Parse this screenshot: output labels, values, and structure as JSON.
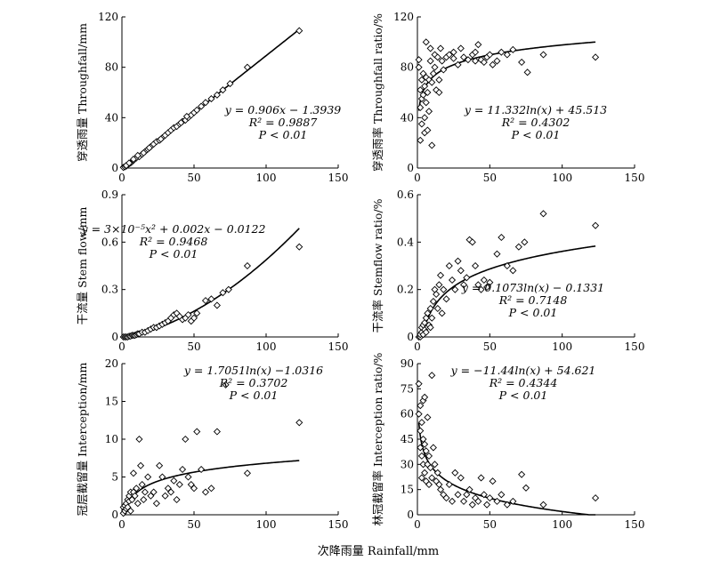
{
  "figure": {
    "xlabel": "次降雨量 Rainfall/mm"
  },
  "chart_data": [
    {
      "type": "scatter",
      "ylabel": "穿透雨量 Throughfall/mm",
      "xlim": [
        0,
        150
      ],
      "ylim": [
        0,
        120
      ],
      "xticks": [
        "0",
        "50",
        "100",
        "150"
      ],
      "yticks": [
        "0",
        "40",
        "80",
        "120"
      ],
      "fit": {
        "kind": "linear",
        "a": 0.906,
        "b": -1.3939
      },
      "annotations": [
        "y = 0.906x − 1.3939",
        "R² = 0.9887",
        "P < 0.01"
      ],
      "points": [
        [
          1,
          0.5
        ],
        [
          2,
          1
        ],
        [
          3,
          1.5
        ],
        [
          4,
          2.5
        ],
        [
          5,
          3.5
        ],
        [
          6,
          4
        ],
        [
          7,
          5
        ],
        [
          8,
          6
        ],
        [
          10,
          8
        ],
        [
          12,
          9
        ],
        [
          14,
          11
        ],
        [
          16,
          13
        ],
        [
          18,
          15
        ],
        [
          20,
          17
        ],
        [
          22,
          19
        ],
        [
          24,
          21
        ],
        [
          26,
          22
        ],
        [
          28,
          24
        ],
        [
          30,
          26
        ],
        [
          32,
          28
        ],
        [
          34,
          30
        ],
        [
          36,
          32
        ],
        [
          38,
          33
        ],
        [
          40,
          35
        ],
        [
          42,
          37
        ],
        [
          44,
          38
        ],
        [
          46,
          40
        ],
        [
          48,
          42
        ],
        [
          50,
          44
        ],
        [
          52,
          46
        ],
        [
          58,
          52
        ],
        [
          62,
          55
        ],
        [
          66,
          58
        ],
        [
          70,
          62
        ],
        [
          75,
          67
        ],
        [
          87,
          80
        ],
        [
          123,
          109
        ],
        [
          3,
          2
        ],
        [
          5,
          4
        ],
        [
          8,
          7
        ],
        [
          11,
          10
        ],
        [
          15,
          12
        ],
        [
          19,
          16
        ],
        [
          27,
          23
        ],
        [
          41,
          36
        ],
        [
          45,
          41
        ],
        [
          55,
          49
        ]
      ]
    },
    {
      "type": "scatter",
      "ylabel": "穿透雨率 Throughfall ratio/%",
      "xlim": [
        0,
        150
      ],
      "ylim": [
        0,
        120
      ],
      "xticks": [
        "0",
        "50",
        "100",
        "150"
      ],
      "yticks": [
        "0",
        "40",
        "80",
        "120"
      ],
      "fit": {
        "kind": "log",
        "a": 11.332,
        "b": 45.513
      },
      "annotations": [
        "y = 11.332ln(x) + 45.513",
        "R² = 0.4302",
        "P < 0.01"
      ],
      "points": [
        [
          1,
          80
        ],
        [
          1,
          86
        ],
        [
          2,
          22
        ],
        [
          2,
          48
        ],
        [
          2,
          62
        ],
        [
          3,
          35
        ],
        [
          3,
          55
        ],
        [
          3,
          70
        ],
        [
          4,
          58
        ],
        [
          4,
          75
        ],
        [
          5,
          28
        ],
        [
          5,
          40
        ],
        [
          5,
          65
        ],
        [
          6,
          52
        ],
        [
          6,
          72
        ],
        [
          6,
          100
        ],
        [
          7,
          30
        ],
        [
          7,
          60
        ],
        [
          8,
          45
        ],
        [
          8,
          70
        ],
        [
          9,
          85
        ],
        [
          10,
          18
        ],
        [
          10,
          68
        ],
        [
          11,
          75
        ],
        [
          12,
          90
        ],
        [
          12,
          80
        ],
        [
          13,
          62
        ],
        [
          14,
          88
        ],
        [
          15,
          70
        ],
        [
          16,
          95
        ],
        [
          17,
          85
        ],
        [
          18,
          78
        ],
        [
          20,
          88
        ],
        [
          22,
          90
        ],
        [
          25,
          87
        ],
        [
          28,
          82
        ],
        [
          30,
          95
        ],
        [
          32,
          88
        ],
        [
          35,
          86
        ],
        [
          38,
          90
        ],
        [
          40,
          92
        ],
        [
          42,
          98
        ],
        [
          44,
          86
        ],
        [
          46,
          84
        ],
        [
          48,
          88
        ],
        [
          50,
          90
        ],
        [
          52,
          82
        ],
        [
          55,
          85
        ],
        [
          58,
          92
        ],
        [
          62,
          90
        ],
        [
          66,
          94
        ],
        [
          72,
          84
        ],
        [
          76,
          76
        ],
        [
          87,
          90
        ],
        [
          123,
          88
        ],
        [
          9,
          95
        ],
        [
          15,
          60
        ],
        [
          25,
          92
        ],
        [
          40,
          85
        ]
      ]
    },
    {
      "type": "scatter",
      "ylabel": "干流量 Stem flow/mm",
      "xlim": [
        0,
        150
      ],
      "ylim": [
        0,
        0.9
      ],
      "xticks": [
        "0",
        "50",
        "100",
        "150"
      ],
      "yticks": [
        "0",
        "0.3",
        "0.6",
        "0.9"
      ],
      "fit": {
        "kind": "quadratic",
        "a": 3e-05,
        "b": 0.002,
        "c": -0.0122
      },
      "annotations": [
        "y = 3×10⁻⁵x² + 0.002x − 0.0122",
        "R² = 0.9468",
        "P < 0.01"
      ],
      "points": [
        [
          1,
          0
        ],
        [
          2,
          0
        ],
        [
          3,
          0
        ],
        [
          4,
          0
        ],
        [
          5,
          0.005
        ],
        [
          6,
          0.005
        ],
        [
          7,
          0.01
        ],
        [
          8,
          0.01
        ],
        [
          9,
          0.01
        ],
        [
          10,
          0.015
        ],
        [
          11,
          0.02
        ],
        [
          12,
          0.02
        ],
        [
          14,
          0.03
        ],
        [
          16,
          0.03
        ],
        [
          18,
          0.04
        ],
        [
          20,
          0.05
        ],
        [
          22,
          0.06
        ],
        [
          24,
          0.06
        ],
        [
          26,
          0.07
        ],
        [
          28,
          0.08
        ],
        [
          30,
          0.09
        ],
        [
          32,
          0.1
        ],
        [
          34,
          0.12
        ],
        [
          36,
          0.14
        ],
        [
          38,
          0.15
        ],
        [
          40,
          0.13
        ],
        [
          42,
          0.11
        ],
        [
          44,
          0.12
        ],
        [
          46,
          0.14
        ],
        [
          48,
          0.1
        ],
        [
          50,
          0.12
        ],
        [
          52,
          0.15
        ],
        [
          58,
          0.23
        ],
        [
          62,
          0.24
        ],
        [
          66,
          0.2
        ],
        [
          70,
          0.28
        ],
        [
          74,
          0.3
        ],
        [
          87,
          0.45
        ],
        [
          123,
          0.57
        ]
      ]
    },
    {
      "type": "scatter",
      "ylabel": "干流率 Stemflow ratio/%",
      "xlim": [
        0,
        150
      ],
      "ylim": [
        0,
        0.6
      ],
      "xticks": [
        "0",
        "50",
        "100",
        "150"
      ],
      "yticks": [
        "0",
        "0.2",
        "0.4",
        "0.6"
      ],
      "fit": {
        "kind": "log",
        "a": 0.1073,
        "b": -0.1331
      },
      "annotations": [
        "y = 0.1073ln(x) − 0.1331",
        "R² = 0.7148",
        "P < 0.01"
      ],
      "points": [
        [
          1,
          0
        ],
        [
          2,
          0
        ],
        [
          2,
          0.01
        ],
        [
          3,
          0.02
        ],
        [
          3,
          0.04
        ],
        [
          4,
          0.01
        ],
        [
          4,
          0.05
        ],
        [
          5,
          0.06
        ],
        [
          5,
          0.03
        ],
        [
          6,
          0.08
        ],
        [
          7,
          0.1
        ],
        [
          8,
          0.05
        ],
        [
          9,
          0.12
        ],
        [
          10,
          0.08
        ],
        [
          11,
          0.15
        ],
        [
          12,
          0.2
        ],
        [
          13,
          0.18
        ],
        [
          14,
          0.12
        ],
        [
          15,
          0.22
        ],
        [
          16,
          0.26
        ],
        [
          18,
          0.2
        ],
        [
          20,
          0.16
        ],
        [
          22,
          0.3
        ],
        [
          24,
          0.24
        ],
        [
          26,
          0.2
        ],
        [
          28,
          0.32
        ],
        [
          30,
          0.28
        ],
        [
          32,
          0.22
        ],
        [
          34,
          0.25
        ],
        [
          36,
          0.41
        ],
        [
          38,
          0.4
        ],
        [
          40,
          0.3
        ],
        [
          42,
          0.22
        ],
        [
          44,
          0.2
        ],
        [
          46,
          0.24
        ],
        [
          48,
          0.21
        ],
        [
          50,
          0.23
        ],
        [
          55,
          0.35
        ],
        [
          58,
          0.42
        ],
        [
          62,
          0.3
        ],
        [
          66,
          0.28
        ],
        [
          70,
          0.38
        ],
        [
          74,
          0.4
        ],
        [
          87,
          0.52
        ],
        [
          123,
          0.47
        ],
        [
          6,
          0.02
        ],
        [
          9,
          0.04
        ],
        [
          17,
          0.1
        ]
      ]
    },
    {
      "type": "scatter",
      "ylabel": "冠层截留量 Interception/mm",
      "xlim": [
        0,
        150
      ],
      "ylim": [
        0,
        20
      ],
      "xticks": [
        "0",
        "50",
        "100",
        "150"
      ],
      "yticks": [
        "0",
        "5",
        "10",
        "15",
        "20"
      ],
      "fit": {
        "kind": "log",
        "a": 1.7051,
        "b": -1.0316
      },
      "annotations": [
        "y = 1.7051ln(x) −1.0316",
        "R² = 0.3702",
        "P < 0.01"
      ],
      "points": [
        [
          1,
          0.2
        ],
        [
          1,
          1
        ],
        [
          2,
          0.5
        ],
        [
          2,
          1.2
        ],
        [
          3,
          1.5
        ],
        [
          3,
          0.8
        ],
        [
          4,
          2
        ],
        [
          4,
          1
        ],
        [
          5,
          1.8
        ],
        [
          5,
          2.5
        ],
        [
          6,
          0.5
        ],
        [
          6,
          3
        ],
        [
          7,
          2
        ],
        [
          8,
          5.5
        ],
        [
          8,
          3
        ],
        [
          9,
          2.5
        ],
        [
          10,
          3.5
        ],
        [
          11,
          1.5
        ],
        [
          12,
          10
        ],
        [
          13,
          6.5
        ],
        [
          14,
          4
        ],
        [
          15,
          2
        ],
        [
          16,
          3
        ],
        [
          18,
          5
        ],
        [
          20,
          2.5
        ],
        [
          22,
          3
        ],
        [
          24,
          1.5
        ],
        [
          26,
          6.5
        ],
        [
          28,
          5
        ],
        [
          30,
          2.5
        ],
        [
          32,
          3.5
        ],
        [
          34,
          3
        ],
        [
          36,
          4.5
        ],
        [
          38,
          2
        ],
        [
          40,
          4
        ],
        [
          42,
          6
        ],
        [
          44,
          10
        ],
        [
          46,
          5
        ],
        [
          48,
          4
        ],
        [
          50,
          3.5
        ],
        [
          52,
          11
        ],
        [
          55,
          6
        ],
        [
          58,
          3
        ],
        [
          62,
          3.5
        ],
        [
          66,
          11
        ],
        [
          72,
          17.2
        ],
        [
          87,
          5.5
        ],
        [
          123,
          12.2
        ]
      ]
    },
    {
      "type": "scatter",
      "ylabel": "林冠截留率 Interception ratio/%",
      "xlim": [
        0,
        150
      ],
      "ylim": [
        0,
        90
      ],
      "xticks": [
        "0",
        "50",
        "100",
        "150"
      ],
      "yticks": [
        "0",
        "15",
        "30",
        "45",
        "60",
        "75",
        "90"
      ],
      "fit": {
        "kind": "log",
        "a": -11.44,
        "b": 54.621
      },
      "annotations": [
        "y = −11.44ln(x) + 54.621",
        "R² = 0.4344",
        "P < 0.01"
      ],
      "points": [
        [
          1,
          78
        ],
        [
          1,
          60
        ],
        [
          2,
          65
        ],
        [
          2,
          50
        ],
        [
          2,
          40
        ],
        [
          3,
          55
        ],
        [
          3,
          35
        ],
        [
          3,
          22
        ],
        [
          4,
          68
        ],
        [
          4,
          45
        ],
        [
          4,
          30
        ],
        [
          5,
          70
        ],
        [
          5,
          42
        ],
        [
          5,
          25
        ],
        [
          6,
          38
        ],
        [
          6,
          20
        ],
        [
          7,
          58
        ],
        [
          7,
          30
        ],
        [
          8,
          35
        ],
        [
          8,
          18
        ],
        [
          9,
          28
        ],
        [
          10,
          83
        ],
        [
          10,
          22
        ],
        [
          11,
          40
        ],
        [
          12,
          30
        ],
        [
          13,
          20
        ],
        [
          14,
          25
        ],
        [
          15,
          18
        ],
        [
          16,
          15
        ],
        [
          18,
          12
        ],
        [
          20,
          10
        ],
        [
          22,
          18
        ],
        [
          24,
          8
        ],
        [
          26,
          25
        ],
        [
          28,
          12
        ],
        [
          30,
          22
        ],
        [
          32,
          8
        ],
        [
          34,
          12
        ],
        [
          36,
          15
        ],
        [
          38,
          6
        ],
        [
          40,
          10
        ],
        [
          42,
          8
        ],
        [
          44,
          22
        ],
        [
          46,
          12
        ],
        [
          48,
          6
        ],
        [
          50,
          10
        ],
        [
          52,
          20
        ],
        [
          55,
          8
        ],
        [
          58,
          12
        ],
        [
          62,
          6
        ],
        [
          66,
          8
        ],
        [
          72,
          24
        ],
        [
          75,
          16
        ],
        [
          87,
          6
        ],
        [
          123,
          10
        ]
      ]
    }
  ]
}
